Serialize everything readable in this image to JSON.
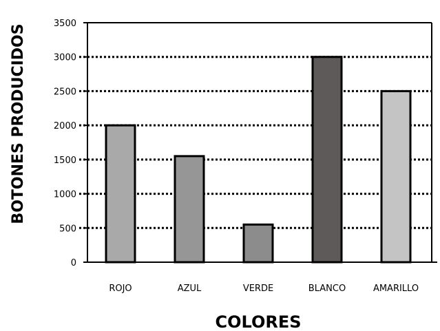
{
  "chart_data": {
    "type": "bar",
    "title": "",
    "xlabel": "COLORES",
    "ylabel": "BOTONES PRODUCIDOS",
    "categories": [
      "ROJO",
      "AZUL",
      "VERDE",
      "BLANCO",
      "AMARILLO"
    ],
    "values": [
      2000,
      1550,
      550,
      3000,
      2500
    ],
    "bar_colors": [
      "#a9a9a9",
      "#969696",
      "#8c8c8c",
      "#5f5a5a",
      "#c4c4c4"
    ],
    "ylim": [
      0,
      3500
    ],
    "yticks": [
      "0",
      "500",
      "1000",
      "1500",
      "2000",
      "2500",
      "3000",
      "3500"
    ],
    "grid": true,
    "legend": "none"
  }
}
